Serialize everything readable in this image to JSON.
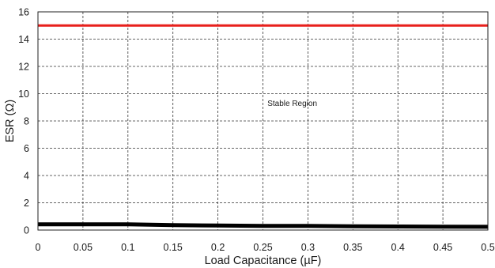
{
  "chart_data": {
    "type": "line",
    "xlabel": "Load Capacitance (µF)",
    "ylabel": "ESR (Ω)",
    "xlim": [
      0,
      0.5
    ],
    "ylim": [
      0,
      16
    ],
    "xticks": [
      0,
      0.05,
      0.1,
      0.15,
      0.2,
      0.25,
      0.3,
      0.35,
      0.4,
      0.45,
      0.5
    ],
    "xtick_labels": [
      "0",
      "0.05",
      "0.1",
      "0.15",
      "0.2",
      "0.25",
      "0.3",
      "0.35",
      "0.4",
      "0.45",
      "0.5"
    ],
    "yticks": [
      0,
      2,
      4,
      6,
      8,
      10,
      12,
      14,
      16
    ],
    "ytick_labels": [
      "0",
      "2",
      "4",
      "6",
      "8",
      "10",
      "12",
      "14",
      "16"
    ],
    "grid": true,
    "series": [
      {
        "color": "#e8201c",
        "x": [
          0,
          0.5
        ],
        "y": [
          15,
          15
        ]
      },
      {
        "color": "#000000",
        "x": [
          0,
          0.05,
          0.1,
          0.15,
          0.2,
          0.25,
          0.3,
          0.35,
          0.4,
          0.45,
          0.5
        ],
        "y": [
          0.42,
          0.42,
          0.42,
          0.36,
          0.33,
          0.31,
          0.3,
          0.28,
          0.26,
          0.25,
          0.24
        ]
      }
    ],
    "annotations": [
      {
        "text": "Stable Region",
        "x": 0.255,
        "y": 9.1
      }
    ]
  }
}
